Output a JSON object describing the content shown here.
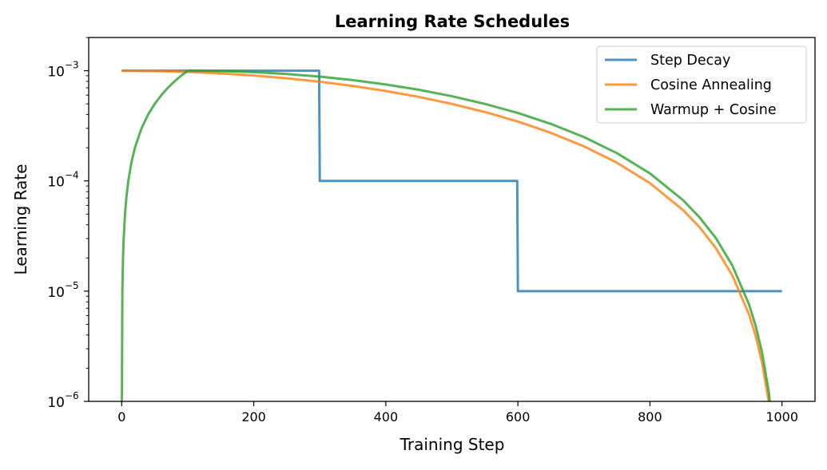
{
  "chart_data": {
    "type": "line",
    "title": "Learning Rate Schedules",
    "xlabel": "Training Step",
    "ylabel": "Learning Rate",
    "xlim": [
      -50,
      1050
    ],
    "ylim": [
      1e-06,
      0.002
    ],
    "yscale": "log",
    "grid": false,
    "legend_position": "top-right",
    "x_ticks": [
      0,
      200,
      400,
      600,
      800,
      1000
    ],
    "x_tick_labels": [
      "0",
      "200",
      "400",
      "600",
      "800",
      "1000"
    ],
    "y_ticks": [
      1e-06,
      1e-05,
      0.0001,
      0.001
    ],
    "y_tick_labels": [
      {
        "base": "10",
        "exp": "−6"
      },
      {
        "base": "10",
        "exp": "−5"
      },
      {
        "base": "10",
        "exp": "−4"
      },
      {
        "base": "10",
        "exp": "−3"
      }
    ],
    "series": [
      {
        "name": "Step Decay",
        "color": "#1f77b4",
        "x": [
          0,
          299,
          300,
          599,
          600,
          1000
        ],
        "y": [
          0.001,
          0.001,
          0.0001,
          0.0001,
          1e-05,
          1e-05
        ]
      },
      {
        "name": "Cosine Annealing",
        "color": "#ff7f0e",
        "x": [
          0,
          50,
          100,
          150,
          200,
          250,
          300,
          350,
          400,
          450,
          500,
          550,
          600,
          650,
          700,
          750,
          800,
          850,
          875,
          900,
          925,
          950,
          960,
          970,
          980,
          990
        ],
        "y": [
          0.001,
          0.0009938,
          0.0009755,
          0.0009455,
          0.0009045,
          0.0008536,
          0.0007939,
          0.000727,
          0.0006545,
          0.0005782,
          0.0005,
          0.0004218,
          0.0003455,
          0.000273,
          0.0002061,
          0.0001464,
          9.55e-05,
          5.45e-05,
          3.81e-05,
          2.45e-05,
          1.381e-05,
          6.16e-06,
          3.95e-06,
          2.22e-06,
          9.87e-07,
          2.47e-07
        ]
      },
      {
        "name": "Warmup + Cosine",
        "color": "#2ca02c",
        "x": [
          0,
          1,
          2,
          3,
          5,
          7,
          10,
          15,
          20,
          30,
          40,
          50,
          60,
          70,
          80,
          90,
          100,
          150,
          200,
          250,
          300,
          350,
          400,
          450,
          500,
          550,
          600,
          650,
          700,
          750,
          800,
          850,
          875,
          900,
          925,
          950,
          960,
          970,
          980,
          990
        ],
        "y": [
          0,
          1e-05,
          2e-05,
          3e-05,
          5e-05,
          7e-05,
          0.0001,
          0.00015,
          0.0002,
          0.0003,
          0.0004,
          0.0005,
          0.0006,
          0.0007,
          0.0008,
          0.0009,
          0.001,
          0.0009924,
          0.0009698,
          0.000933,
          0.000883,
          0.0008214,
          0.00075,
          0.000671,
          0.0005868,
          0.0005,
          0.0004132,
          0.000329,
          0.00025,
          0.0001786,
          0.000117,
          6.7e-05,
          4.68e-05,
          3.02e-05,
          1.7e-05,
          7.6e-06,
          4.87e-06,
          2.74e-06,
          1.22e-06,
          3.05e-07
        ]
      }
    ]
  }
}
